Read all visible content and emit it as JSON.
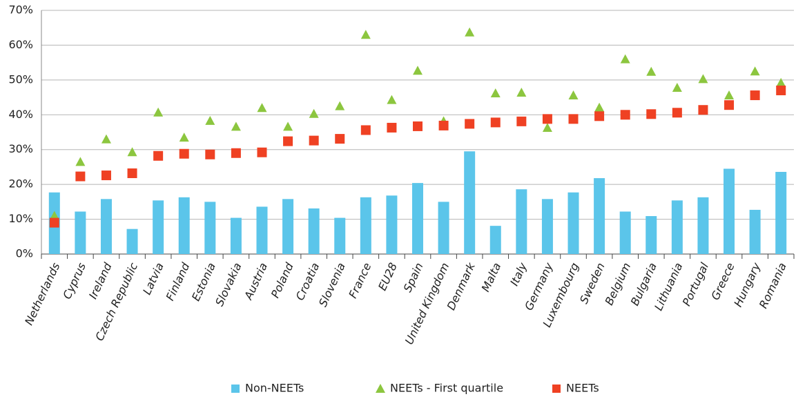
{
  "chart_data": {
    "type": "combo",
    "categories": [
      "Netherlands",
      "Cyprus",
      "Ireland",
      "Czech Republic",
      "Latvia",
      "Finland",
      "Estonia",
      "Slovakia",
      "Austria",
      "Poland",
      "Croatia",
      "Slovenia",
      "France",
      "EU28",
      "Spain",
      "United Kingdom",
      "Denmark",
      "Malta",
      "Italy",
      "Germany",
      "Luxembourg",
      "Sweden",
      "Belgium",
      "Bulgaria",
      "Lithuania",
      "Portugal",
      "Greece",
      "Hungary",
      "Romania"
    ],
    "series": [
      {
        "name": "Non-NEETs",
        "color": "#5bc5ea",
        "marker": "bar",
        "values": [
          17.7,
          12.2,
          15.8,
          7.2,
          15.4,
          16.3,
          15,
          10.4,
          13.6,
          15.8,
          13.1,
          10.4,
          16.3,
          16.8,
          20.4,
          15,
          29.5,
          8.1,
          18.6,
          15.8,
          17.7,
          21.8,
          12.2,
          10.9,
          15.4,
          16.3,
          24.5,
          12.7,
          23.6
        ]
      },
      {
        "name": "NEETs - First quartile",
        "color": "#8cc63f",
        "marker": "triangle",
        "values": [
          11,
          26.5,
          33,
          29.3,
          40.7,
          33.5,
          38.3,
          36.6,
          42,
          36.6,
          40.3,
          42.5,
          63,
          44.3,
          52.7,
          38.2,
          63.7,
          46.2,
          46.4,
          36.3,
          45.6,
          42.1,
          56,
          52.4,
          47.8,
          50.3,
          45.6,
          52.5,
          49.2
        ]
      },
      {
        "name": "NEETs",
        "color": "#ef4123",
        "marker": "square",
        "values": [
          9,
          22.3,
          22.6,
          23.2,
          28.2,
          28.8,
          28.6,
          29,
          29.2,
          32.4,
          32.6,
          33.1,
          35.6,
          36.3,
          36.7,
          36.9,
          37.4,
          37.8,
          38.1,
          38.8,
          38.8,
          39.6,
          40,
          40.2,
          40.6,
          41.4,
          42.8,
          45.6,
          47
        ]
      }
    ],
    "ylim": [
      0,
      70
    ],
    "yticks": [
      {
        "value": 0,
        "label": "0%"
      },
      {
        "value": 10,
        "label": "10%"
      },
      {
        "value": 20,
        "label": "20%"
      },
      {
        "value": 30,
        "label": "30%"
      },
      {
        "value": 40,
        "label": "40%"
      },
      {
        "value": 50,
        "label": "50%"
      },
      {
        "value": 60,
        "label": "60%"
      },
      {
        "value": 70,
        "label": "70%"
      }
    ],
    "grid": true,
    "legend": "bottom"
  }
}
